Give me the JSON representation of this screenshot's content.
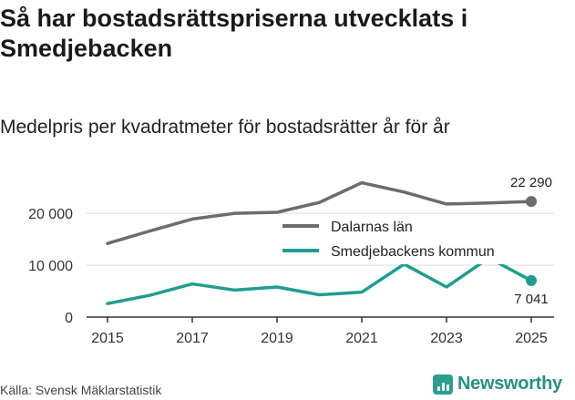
{
  "title": "Så har bostadsrättspriserna utvecklats i Smedjebacken",
  "subtitle": "Medelpris per kvadratmeter för bostadsrätter år för år",
  "source": "Källa: Svensk Mäklarstatistik",
  "brand": "Newsworthy",
  "chart_data": {
    "type": "line",
    "x": [
      2015,
      2016,
      2017,
      2018,
      2019,
      2020,
      2021,
      2022,
      2023,
      2024,
      2025
    ],
    "xticks": [
      2015,
      2017,
      2019,
      2021,
      2023,
      2025
    ],
    "yticks": [
      0,
      10000,
      20000
    ],
    "ytick_labels": [
      "0",
      "10 000",
      "20 000"
    ],
    "ylim": [
      0,
      26000
    ],
    "xlim": [
      2015,
      2025
    ],
    "series": [
      {
        "name": "Dalarnas län",
        "color": "#6b6b70",
        "values": [
          14200,
          16600,
          18900,
          20000,
          20200,
          22100,
          25900,
          24100,
          21800,
          22000,
          22290
        ],
        "end_label": "22 290"
      },
      {
        "name": "Smedjebackens kommun",
        "color": "#1f9e8f",
        "values": [
          2600,
          4200,
          6400,
          5200,
          5800,
          4300,
          4800,
          10200,
          5800,
          11400,
          7041
        ],
        "end_label": "7 041"
      }
    ],
    "legend_position": "center-right"
  }
}
